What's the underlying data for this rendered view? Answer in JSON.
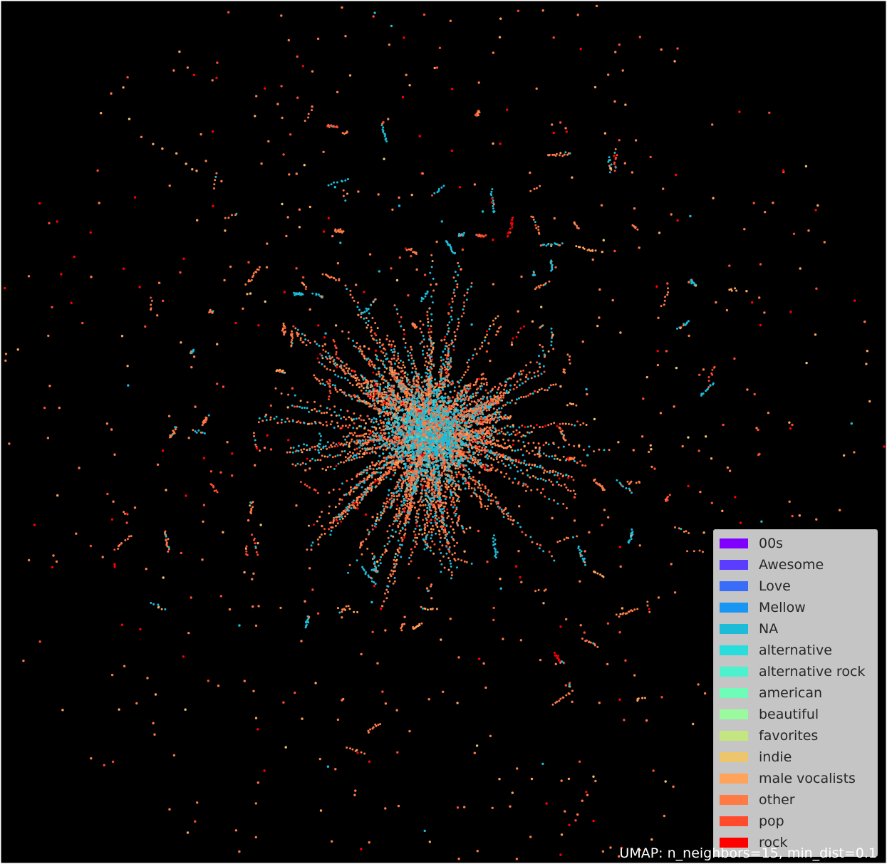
{
  "chart_data": {
    "type": "scatter",
    "title": "",
    "xlabel": "",
    "ylabel": "",
    "grid": false,
    "axes_visible": false,
    "background_color": "#000000",
    "caption": "UMAP: n_neighbors=15, min_dist=0.1",
    "legend_position": "lower-right",
    "categories": [
      {
        "name": "00s",
        "color": "#8000ff"
      },
      {
        "name": "Awesome",
        "color": "#5a3dff"
      },
      {
        "name": "Love",
        "color": "#3a6cfa"
      },
      {
        "name": "Mellow",
        "color": "#1996f3"
      },
      {
        "name": "NA",
        "color": "#1cbcd8"
      },
      {
        "name": "alternative",
        "color": "#2adddd"
      },
      {
        "name": "alternative rock",
        "color": "#4cf2ce"
      },
      {
        "name": "american",
        "color": "#6efcb8"
      },
      {
        "name": "beautiful",
        "color": "#9afa9e"
      },
      {
        "name": "favorites",
        "color": "#c4e680"
      },
      {
        "name": "indie",
        "color": "#ecc56d"
      },
      {
        "name": "male vocalists",
        "color": "#ffa35a"
      },
      {
        "name": "other",
        "color": "#ff7a45"
      },
      {
        "name": "pop",
        "color": "#ff4a2c"
      },
      {
        "name": "rock",
        "color": "#ff0000"
      }
    ],
    "clusters": {
      "center": [
        0.0,
        0.0
      ],
      "dense_core_radius": 0.05,
      "description_points": "thousands of small points; dense core near center dominated by NA and other, radiating spokes and scattered isolated points",
      "dominant_categories": [
        "other",
        "NA",
        "pop",
        "rock",
        "male vocalists"
      ]
    }
  }
}
